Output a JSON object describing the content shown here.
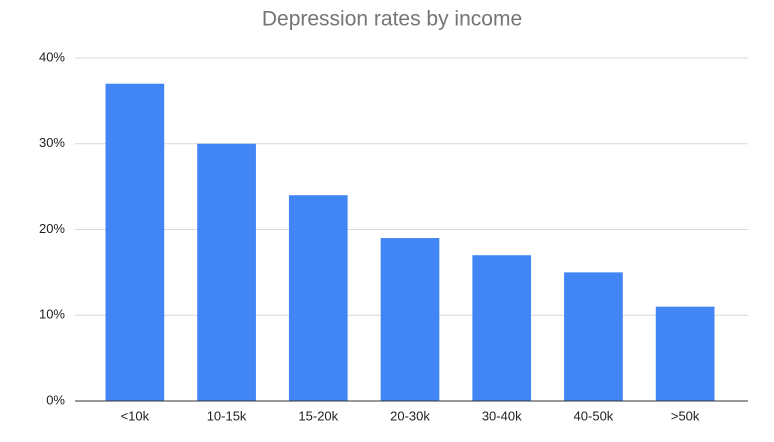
{
  "chart_data": {
    "type": "bar",
    "title": "Depression rates by income",
    "categories": [
      "<10k",
      "10-15k",
      "15-20k",
      "20-30k",
      "30-40k",
      "40-50k",
      ">50k"
    ],
    "values": [
      37,
      30,
      24,
      19,
      17,
      15,
      11
    ],
    "color": "#4285f4",
    "ylim": [
      0,
      40
    ],
    "yticks": [
      {
        "value": 0,
        "label": "0%"
      },
      {
        "value": 10,
        "label": "10%"
      },
      {
        "value": 20,
        "label": "20%"
      },
      {
        "value": 30,
        "label": "30%"
      },
      {
        "value": 40,
        "label": "40%"
      }
    ],
    "grid": true
  }
}
